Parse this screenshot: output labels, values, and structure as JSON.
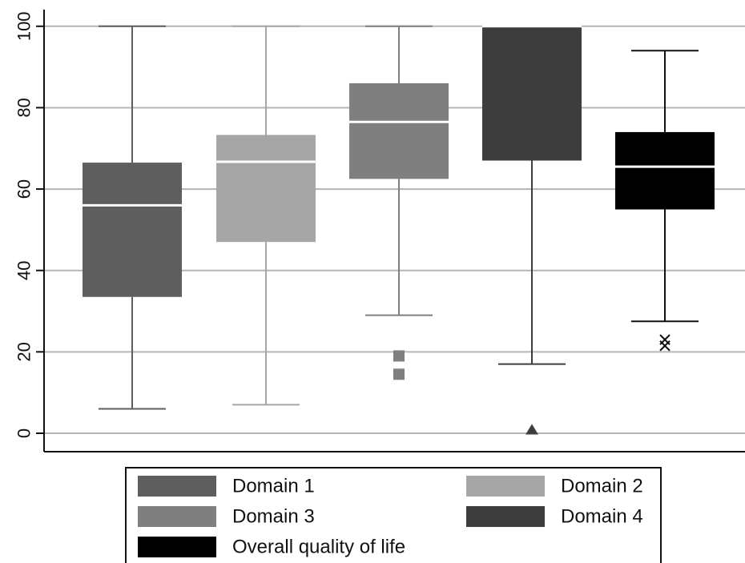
{
  "chart_data": {
    "type": "box",
    "title": "",
    "xlabel": "",
    "ylabel": "",
    "ylim": [
      -5,
      104
    ],
    "yticks": [
      0,
      20,
      40,
      60,
      80,
      100
    ],
    "grid": true,
    "legend_position": "bottom",
    "series": [
      {
        "name": "Domain 1",
        "color": "#5e5e5e",
        "whisker_low": 6,
        "q1": 33.5,
        "median": 56,
        "q3": 66.5,
        "whisker_high": 100,
        "outliers": [],
        "outlier_marker": "none"
      },
      {
        "name": "Domain 2",
        "color": "#a6a6a6",
        "whisker_low": 7,
        "q1": 47,
        "median": 66.7,
        "q3": 73.3,
        "whisker_high": 100,
        "outliers": [],
        "outlier_marker": "none"
      },
      {
        "name": "Domain 3",
        "color": "#7f7f7f",
        "whisker_low": 29,
        "q1": 62.5,
        "median": 76.5,
        "q3": 86,
        "whisker_high": 100,
        "outliers": [
          19,
          14.5
        ],
        "outlier_marker": "square"
      },
      {
        "name": "Domain 4",
        "color": "#3d3d3d",
        "whisker_low": 17,
        "q1": 67,
        "median": 100,
        "q3": 100,
        "whisker_high": 100,
        "outliers": [
          0.5
        ],
        "outlier_marker": "triangle"
      },
      {
        "name": "Overall quality of life",
        "color": "#000000",
        "whisker_low": 27.5,
        "q1": 55,
        "median": 65.5,
        "q3": 74,
        "whisker_high": 94,
        "outliers": [
          23,
          21.5
        ],
        "outlier_marker": "x"
      }
    ]
  }
}
